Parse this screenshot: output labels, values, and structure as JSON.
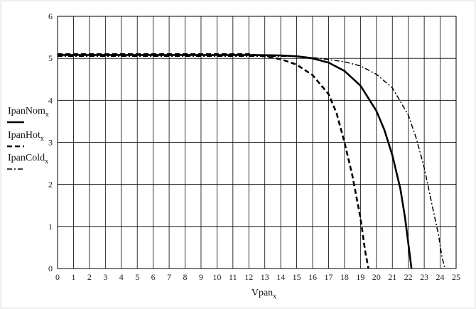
{
  "chart_data": {
    "type": "line",
    "xlabel": {
      "main": "Vpan",
      "sub": "x"
    },
    "ylabel": "",
    "xlim": [
      0,
      25
    ],
    "ylim": [
      0,
      6
    ],
    "x_ticks": [
      0,
      1,
      2,
      3,
      4,
      5,
      6,
      7,
      8,
      9,
      10,
      11,
      12,
      13,
      14,
      15,
      16,
      17,
      18,
      19,
      20,
      21,
      22,
      23,
      24,
      25
    ],
    "y_ticks": [
      0,
      1,
      2,
      3,
      4,
      5,
      6
    ],
    "grid": true,
    "legend_position": "left",
    "series": [
      {
        "name": "IpanNom",
        "name_sub": "x",
        "style": "solid",
        "color": "#000000",
        "points": [
          [
            0,
            5.08
          ],
          [
            12,
            5.08
          ],
          [
            14,
            5.07
          ],
          [
            15,
            5.05
          ],
          [
            16,
            5.0
          ],
          [
            17,
            4.9
          ],
          [
            18,
            4.7
          ],
          [
            19,
            4.35
          ],
          [
            20,
            3.75
          ],
          [
            20.5,
            3.3
          ],
          [
            21,
            2.7
          ],
          [
            21.5,
            1.9
          ],
          [
            21.8,
            1.2
          ],
          [
            22,
            0.6
          ],
          [
            22.2,
            0
          ]
        ]
      },
      {
        "name": "IpanHot",
        "name_sub": "x",
        "style": "dashed",
        "color": "#000000",
        "points": [
          [
            0,
            5.1
          ],
          [
            12,
            5.1
          ],
          [
            13,
            5.05
          ],
          [
            14,
            4.98
          ],
          [
            15,
            4.85
          ],
          [
            16,
            4.6
          ],
          [
            17,
            4.15
          ],
          [
            17.5,
            3.7
          ],
          [
            18,
            3.0
          ],
          [
            18.5,
            2.2
          ],
          [
            19,
            1.2
          ],
          [
            19.3,
            0.4
          ],
          [
            19.5,
            0
          ]
        ]
      },
      {
        "name": "IpanCold",
        "name_sub": "x",
        "style": "dash-dot",
        "color": "#000000",
        "points": [
          [
            0,
            5.05
          ],
          [
            15,
            5.05
          ],
          [
            16,
            5.02
          ],
          [
            17,
            4.97
          ],
          [
            18,
            4.92
          ],
          [
            19,
            4.82
          ],
          [
            20,
            4.62
          ],
          [
            21,
            4.3
          ],
          [
            22,
            3.65
          ],
          [
            22.5,
            3.1
          ],
          [
            23,
            2.4
          ],
          [
            23.5,
            1.5
          ],
          [
            23.9,
            0.8
          ],
          [
            24.1,
            0.3
          ],
          [
            24.3,
            0
          ]
        ]
      }
    ]
  }
}
